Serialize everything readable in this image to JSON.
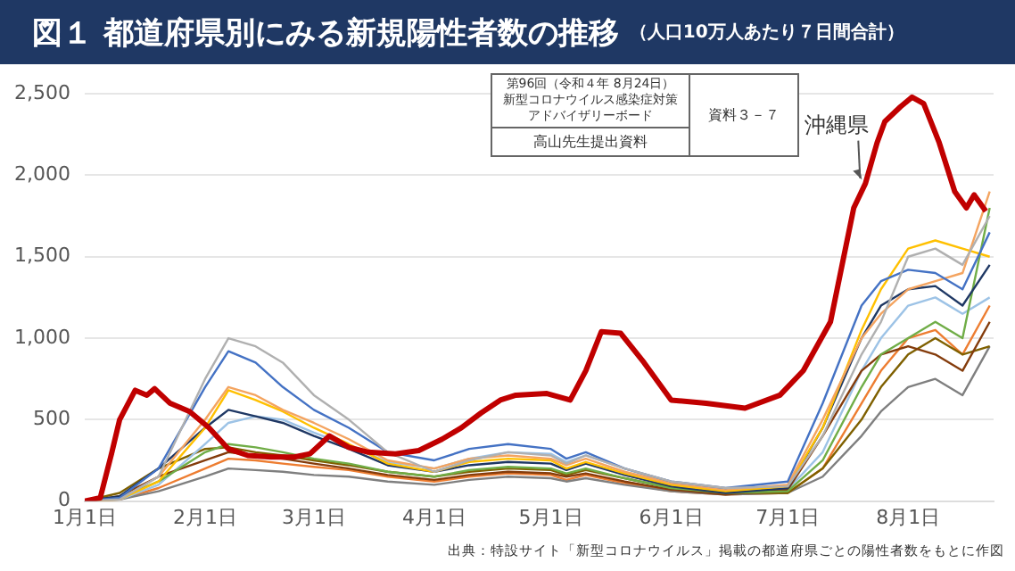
{
  "chart_data": {
    "type": "line",
    "title": "図１ 都道府県別にみる新規陽性者数の推移",
    "subtitle": "（人口10万人あたり７日間合計）",
    "x": [
      "--01-01",
      "--01-10",
      "--01-20",
      "--02-01",
      "--02-07",
      "--02-14",
      "--02-21",
      "--03-01",
      "--03-10",
      "--03-20",
      "--04-01",
      "--04-10",
      "--04-20",
      "--05-01",
      "--05-05",
      "--05-10",
      "--05-20",
      "--06-01",
      "--06-15",
      "--07-01",
      "--07-10",
      "--07-20",
      "--07-25",
      "--08-01",
      "--08-08",
      "--08-15",
      "--08-22"
    ],
    "series": [
      {
        "color": "#b0b0b0",
        "values": [
          0,
          10,
          150,
          750,
          1000,
          950,
          850,
          650,
          500,
          300,
          180,
          250,
          300,
          280,
          230,
          280,
          200,
          120,
          80,
          90,
          400,
          900,
          1100,
          1500,
          1550,
          1450,
          1750
        ]
      },
      {
        "color": "#4472c4",
        "values": [
          0,
          20,
          200,
          700,
          920,
          850,
          700,
          560,
          450,
          300,
          250,
          320,
          350,
          320,
          260,
          300,
          200,
          120,
          80,
          120,
          600,
          1200,
          1350,
          1420,
          1400,
          1300,
          1650
        ]
      },
      {
        "color": "#f4a460",
        "values": [
          0,
          10,
          150,
          500,
          700,
          650,
          560,
          480,
          380,
          250,
          200,
          260,
          280,
          260,
          220,
          260,
          180,
          110,
          70,
          100,
          500,
          1000,
          1150,
          1300,
          1350,
          1400,
          1900
        ]
      },
      {
        "color": "#ffc000",
        "values": [
          0,
          10,
          120,
          450,
          680,
          620,
          550,
          450,
          350,
          230,
          180,
          240,
          260,
          250,
          200,
          240,
          170,
          100,
          60,
          90,
          450,
          1050,
          1300,
          1550,
          1600,
          1550,
          1500
        ]
      },
      {
        "color": "#1f3864",
        "values": [
          0,
          30,
          200,
          450,
          560,
          520,
          480,
          400,
          320,
          220,
          180,
          220,
          240,
          230,
          190,
          230,
          160,
          90,
          50,
          80,
          450,
          1000,
          1200,
          1300,
          1320,
          1200,
          1450
        ]
      },
      {
        "color": "#70ad47",
        "values": [
          0,
          20,
          120,
          300,
          350,
          330,
          300,
          260,
          230,
          180,
          150,
          190,
          210,
          200,
          170,
          200,
          140,
          80,
          50,
          60,
          250,
          700,
          900,
          1000,
          1100,
          1000,
          1800
        ]
      },
      {
        "color": "#843c0c",
        "values": [
          0,
          30,
          150,
          250,
          300,
          280,
          260,
          230,
          200,
          160,
          130,
          160,
          180,
          170,
          150,
          170,
          120,
          70,
          40,
          70,
          400,
          800,
          900,
          950,
          900,
          800,
          1100
        ]
      },
      {
        "color": "#9dc3e6",
        "values": [
          0,
          10,
          100,
          350,
          480,
          520,
          500,
          420,
          340,
          240,
          200,
          260,
          300,
          290,
          240,
          280,
          200,
          110,
          60,
          70,
          300,
          800,
          1000,
          1200,
          1250,
          1150,
          1250
        ]
      },
      {
        "color": "#7f6000",
        "values": [
          0,
          50,
          200,
          320,
          330,
          300,
          280,
          250,
          220,
          180,
          150,
          180,
          200,
          190,
          160,
          190,
          140,
          80,
          50,
          50,
          200,
          500,
          700,
          900,
          1000,
          900,
          950
        ]
      },
      {
        "color": "#7f7f7f",
        "values": [
          0,
          10,
          60,
          150,
          200,
          190,
          180,
          160,
          150,
          120,
          100,
          130,
          150,
          140,
          120,
          140,
          100,
          60,
          40,
          50,
          150,
          400,
          550,
          700,
          750,
          650,
          950
        ]
      },
      {
        "color": "#ed7d31",
        "values": [
          0,
          10,
          80,
          200,
          260,
          250,
          230,
          210,
          190,
          150,
          120,
          150,
          170,
          160,
          130,
          160,
          110,
          60,
          40,
          50,
          200,
          600,
          800,
          1000,
          1050,
          900,
          1200
        ]
      },
      {
        "color": "#c00000",
        "x": [
          "--01-01",
          "--01-05",
          "--01-08",
          "--01-10",
          "--01-14",
          "--01-17",
          "--01-19",
          "--01-23",
          "--01-28",
          "--02-02",
          "--02-07",
          "--02-12",
          "--02-18",
          "--02-24",
          "--02-28",
          "--03-05",
          "--03-10",
          "--03-15",
          "--03-22",
          "--03-28",
          "--04-03",
          "--04-08",
          "--04-13",
          "--04-18",
          "--04-22",
          "--04-30",
          "--05-06",
          "--05-10",
          "--05-14",
          "--05-19",
          "--05-25",
          "--06-01",
          "--06-10",
          "--06-20",
          "--06-29",
          "--07-05",
          "--07-12",
          "--07-15",
          "--07-18",
          "--07-21",
          "--07-24",
          "--07-26",
          "--07-30",
          "--08-02",
          "--08-05",
          "--08-09",
          "--08-13",
          "--08-16",
          "--08-18",
          "--08-21"
        ],
        "values": [
          0,
          20,
          300,
          500,
          680,
          650,
          690,
          600,
          550,
          450,
          320,
          280,
          270,
          270,
          290,
          400,
          330,
          300,
          290,
          310,
          380,
          450,
          540,
          620,
          650,
          660,
          620,
          800,
          1040,
          1030,
          850,
          620,
          600,
          570,
          650,
          800,
          1100,
          1450,
          1800,
          1950,
          2200,
          2330,
          2420,
          2480,
          2440,
          2200,
          1900,
          1800,
          1880,
          1780
        ]
      }
    ],
    "xlim": [
      "--01-01",
      "--08-23"
    ],
    "xticks": [
      {
        "value": "--01-01",
        "label": "1月1日"
      },
      {
        "value": "--02-01",
        "label": "2月1日"
      },
      {
        "value": "--03-01",
        "label": "3月1日"
      },
      {
        "value": "--04-01",
        "label": "4月1日"
      },
      {
        "value": "--05-01",
        "label": "5月1日"
      },
      {
        "value": "--06-01",
        "label": "6月1日"
      },
      {
        "value": "--07-01",
        "label": "7月1日"
      },
      {
        "value": "--08-01",
        "label": "8月1日"
      }
    ],
    "ylim": [
      0,
      2500
    ],
    "yticks": [
      0,
      500,
      {
        "value": 1000,
        "label": "1,000"
      },
      {
        "value": 1500,
        "label": "1,500"
      },
      {
        "value": 2000,
        "label": "2,000"
      },
      {
        "value": 2500,
        "label": "2,500"
      }
    ],
    "grid": "y",
    "legend": false,
    "marker": "none",
    "line_style": "solid",
    "annotations": [
      "第96回（令和４年 8月24日）",
      "新型コロナウイルス感染症対策",
      "アドバイザリーボード",
      "資料３－７",
      "高山先生提出資料",
      {
        "text": "沖縄県",
        "x": "--07-21",
        "y": 1950
      },
      "出典：特設サイト「新型コロナウイルス」掲載の都道府県ごとの陽性者数をもとに作図"
    ]
  }
}
